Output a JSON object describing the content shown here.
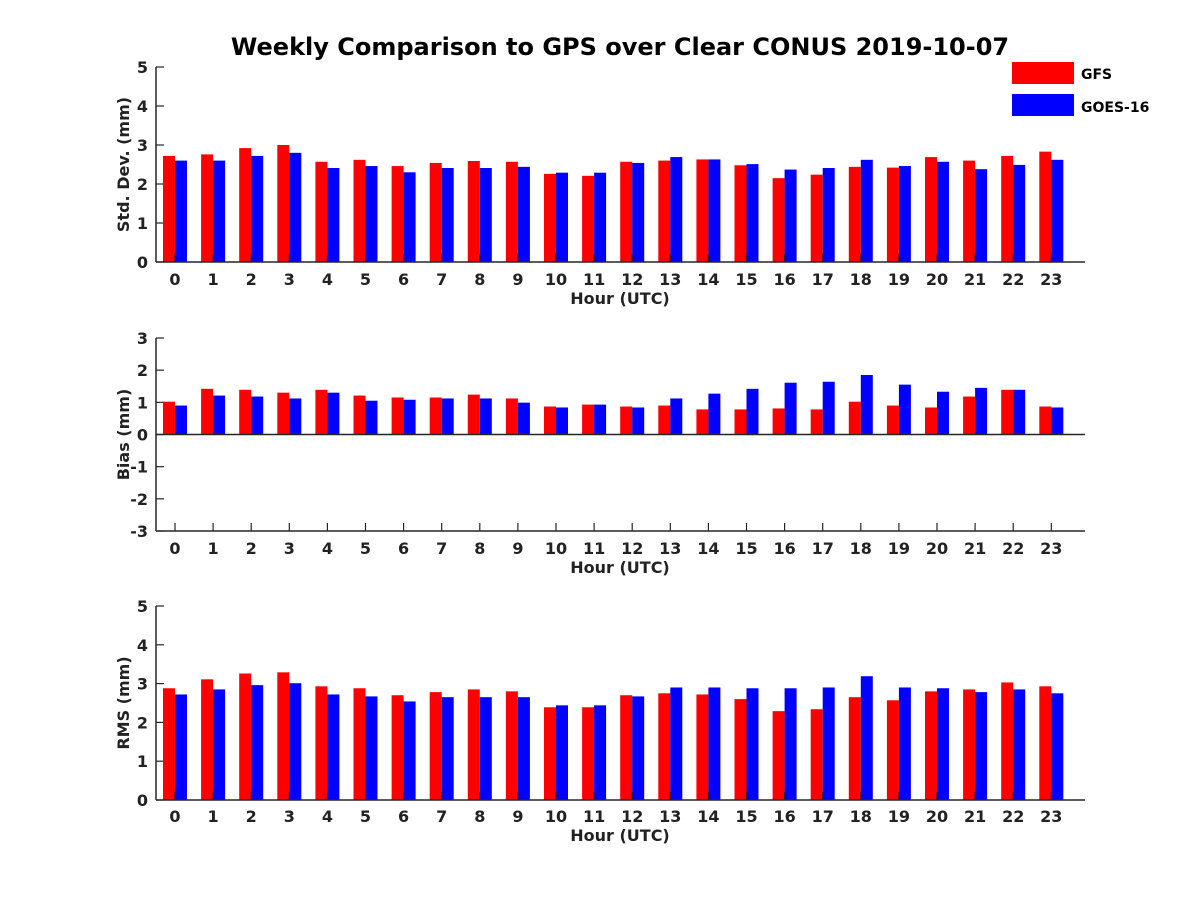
{
  "title": "Weekly Comparison to GPS over Clear CONUS 2019-10-07",
  "legend": [
    {
      "label": "GFS",
      "color": "#ff0000"
    },
    {
      "label": "GOES-16",
      "color": "#0000ff"
    }
  ],
  "chart_data": [
    {
      "type": "bar",
      "xlabel": "Hour (UTC)",
      "ylabel": "Std. Dev. (mm)",
      "ylim": [
        0,
        5
      ],
      "yticks": [
        "0",
        "1",
        "2",
        "3",
        "4",
        "5"
      ],
      "categories": [
        "0",
        "1",
        "2",
        "3",
        "4",
        "5",
        "6",
        "7",
        "8",
        "9",
        "10",
        "11",
        "12",
        "13",
        "14",
        "15",
        "16",
        "17",
        "18",
        "19",
        "20",
        "21",
        "22",
        "23"
      ],
      "series": [
        {
          "name": "GFS",
          "values": [
            2.72,
            2.76,
            2.92,
            3.0,
            2.57,
            2.62,
            2.46,
            2.54,
            2.59,
            2.57,
            2.26,
            2.21,
            2.57,
            2.6,
            2.63,
            2.48,
            2.15,
            2.24,
            2.44,
            2.42,
            2.69,
            2.6,
            2.72,
            2.83
          ]
        },
        {
          "name": "GOES-16",
          "values": [
            2.6,
            2.6,
            2.72,
            2.8,
            2.41,
            2.46,
            2.3,
            2.41,
            2.41,
            2.44,
            2.29,
            2.29,
            2.54,
            2.69,
            2.63,
            2.51,
            2.37,
            2.41,
            2.62,
            2.46,
            2.57,
            2.38,
            2.49,
            2.62
          ]
        }
      ]
    },
    {
      "type": "bar",
      "xlabel": "Hour (UTC)",
      "ylabel": "Bias (mm)",
      "ylim": [
        -3,
        3
      ],
      "yticks": [
        "-3",
        "-2",
        "-1",
        "0",
        "1",
        "2",
        "3"
      ],
      "categories": [
        "0",
        "1",
        "2",
        "3",
        "4",
        "5",
        "6",
        "7",
        "8",
        "9",
        "10",
        "11",
        "12",
        "13",
        "14",
        "15",
        "16",
        "17",
        "18",
        "19",
        "20",
        "21",
        "22",
        "23"
      ],
      "series": [
        {
          "name": "GFS",
          "values": [
            1.02,
            1.42,
            1.39,
            1.3,
            1.39,
            1.21,
            1.15,
            1.15,
            1.24,
            1.12,
            0.87,
            0.93,
            0.87,
            0.9,
            0.78,
            0.78,
            0.81,
            0.78,
            1.02,
            0.9,
            0.84,
            1.18,
            1.39,
            0.87
          ]
        },
        {
          "name": "GOES-16",
          "values": [
            0.9,
            1.21,
            1.18,
            1.12,
            1.3,
            1.05,
            1.08,
            1.12,
            1.12,
            0.99,
            0.84,
            0.93,
            0.84,
            1.12,
            1.27,
            1.42,
            1.61,
            1.64,
            1.85,
            1.55,
            1.33,
            1.45,
            1.39,
            0.84
          ]
        }
      ]
    },
    {
      "type": "bar",
      "xlabel": "Hour (UTC)",
      "ylabel": "RMS (mm)",
      "ylim": [
        0,
        5
      ],
      "yticks": [
        "0",
        "1",
        "2",
        "3",
        "4",
        "5"
      ],
      "categories": [
        "0",
        "1",
        "2",
        "3",
        "4",
        "5",
        "6",
        "7",
        "8",
        "9",
        "10",
        "11",
        "12",
        "13",
        "14",
        "15",
        "16",
        "17",
        "18",
        "19",
        "20",
        "21",
        "22",
        "23"
      ],
      "series": [
        {
          "name": "GFS",
          "values": [
            2.88,
            3.11,
            3.26,
            3.29,
            2.93,
            2.88,
            2.7,
            2.78,
            2.85,
            2.8,
            2.39,
            2.39,
            2.7,
            2.75,
            2.72,
            2.6,
            2.29,
            2.34,
            2.65,
            2.57,
            2.8,
            2.85,
            3.03,
            2.93
          ]
        },
        {
          "name": "GOES-16",
          "values": [
            2.72,
            2.85,
            2.96,
            3.01,
            2.72,
            2.67,
            2.54,
            2.65,
            2.65,
            2.65,
            2.44,
            2.44,
            2.67,
            2.9,
            2.9,
            2.88,
            2.88,
            2.9,
            3.19,
            2.9,
            2.88,
            2.78,
            2.85,
            2.75
          ]
        }
      ]
    }
  ]
}
